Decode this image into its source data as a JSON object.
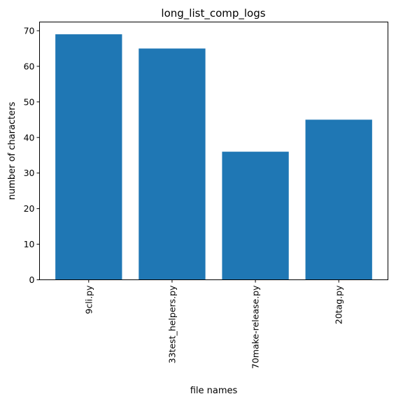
{
  "chart_data": {
    "type": "bar",
    "title": "long_list_comp_logs",
    "xlabel": "file names",
    "ylabel": "number of characters",
    "categories": [
      "9cli.py",
      "33test_helpers.py",
      "70make-release.py",
      "20tag.py"
    ],
    "values": [
      69,
      65,
      36,
      45
    ],
    "ylim": [
      0,
      72.45
    ],
    "yticks": [
      0,
      10,
      20,
      30,
      40,
      50,
      60,
      70
    ],
    "bar_color": "#1f77b4",
    "grid": false,
    "legend": "none"
  }
}
